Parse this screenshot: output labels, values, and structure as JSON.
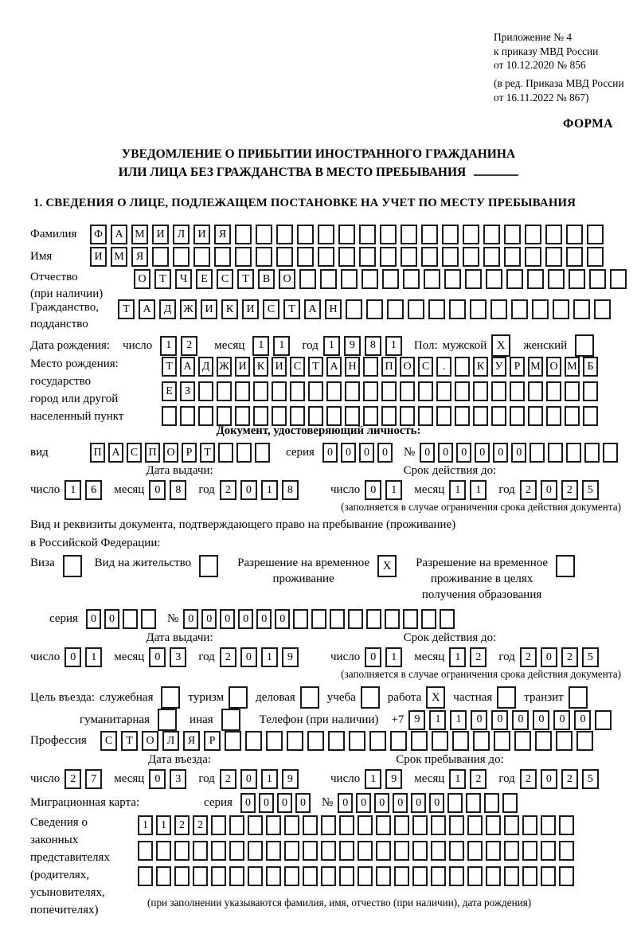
{
  "meta": {
    "appendix_lines": [
      "Приложение № 4",
      "к приказу МВД России",
      "от 10.12.2020 № 856"
    ],
    "amendment_lines": [
      "(в ред. Приказа МВД России",
      "от 16.11.2022 № 867)"
    ],
    "form_label": "ФОРМА"
  },
  "title": {
    "line1": "УВЕДОМЛЕНИЕ О ПРИБЫТИИ ИНОСТРАННОГО ГРАЖДАНИНА",
    "line2": "ИЛИ ЛИЦА БЕЗ ГРАЖДАНСТВА В МЕСТО ПРЕБЫВАНИЯ"
  },
  "section1_heading": "1. СВЕДЕНИЯ О ЛИЦЕ, ПОДЛЕЖАЩЕМ ПОСТАНОВКЕ НА УЧЕТ ПО МЕСТУ ПРЕБЫВАНИЯ",
  "labels": {
    "surname": "Фамилия",
    "name": "Имя",
    "patronymic_l1": "Отчество",
    "patronymic_l2": "(при наличии)",
    "citizenship_l1": "Гражданство,",
    "citizenship_l2": "подданство",
    "birth_date": "Дата рождения:",
    "day": "число",
    "month": "месяц",
    "year": "год",
    "gender": "Пол:",
    "birthplace_l1": "Место рождения:",
    "birthplace_l2": "государство",
    "birthplace_l3": "город или другой",
    "birthplace_l4": "населенный пункт",
    "id_doc_heading": "Документ, удостоверяющий личность:",
    "doc_kind": "вид",
    "series": "серия",
    "number": "№",
    "issue_date": "Дата выдачи:",
    "valid_until": "Срок действия до:",
    "validity_note": "(заполняется в случае ограничения срока действия документа)",
    "residence_doc_l1": "Вид и реквизиты документа, подтверждающего право на пребывание (проживание)",
    "residence_doc_l2": "в Российской Федерации:",
    "entry_purpose": "Цель въезда:",
    "phone": "Телефон (при наличии)",
    "phone_prefix": "+7",
    "profession": "Профессия",
    "entry_date": "Дата въезда:",
    "stay_until": "Срок пребывания до:",
    "migration_card": "Миграционная карта:",
    "representatives_l1": "Сведения о",
    "representatives_l2": "законных",
    "representatives_l3": "представителях",
    "representatives_l4": "(родителях,",
    "representatives_l5": "усыновителях,",
    "representatives_l6": "попечителях)",
    "representatives_note": "(при заполнении указываются фамилия, имя, отчество (при наличии), дата рождения)"
  },
  "fields": {
    "surname": {
      "value": "ФАМИЛИЯ",
      "count": 25
    },
    "name": {
      "value": "ИМЯ",
      "count": 25
    },
    "patronymic": {
      "value": "ОТЧЕСТВО",
      "count": 24
    },
    "citizenship": {
      "value": "ТАДЖИКИСТАН",
      "count": 24
    },
    "birth_day": {
      "value": "12",
      "count": 2
    },
    "birth_month": {
      "value": "11",
      "count": 2
    },
    "birth_year": {
      "value": "1981",
      "count": 4
    },
    "birthplace_1": {
      "value": "ТАДЖИКИСТАН ПОС. КУРМОМБ",
      "count": 24
    },
    "birthplace_2": {
      "value": "ЕЗ",
      "count": 24
    },
    "birthplace_3": {
      "value": "",
      "count": 24
    },
    "id_doc_kind": {
      "value": "ПАСПОРТ",
      "count": 10
    },
    "id_doc_series": {
      "value": "0000",
      "count": 4
    },
    "id_doc_number": {
      "value": "000000",
      "count": 11
    },
    "id_issue_day": {
      "value": "16",
      "count": 2
    },
    "id_issue_month": {
      "value": "08",
      "count": 2
    },
    "id_issue_year": {
      "value": "2018",
      "count": 4
    },
    "id_valid_day": {
      "value": "01",
      "count": 2
    },
    "id_valid_month": {
      "value": "11",
      "count": 2
    },
    "id_valid_year": {
      "value": "2025",
      "count": 4
    },
    "permit_series": {
      "value": "00",
      "count": 4
    },
    "permit_number": {
      "value": "000000",
      "count": 15
    },
    "permit_issue_day": {
      "value": "01",
      "count": 2
    },
    "permit_issue_month": {
      "value": "03",
      "count": 2
    },
    "permit_issue_year": {
      "value": "2019",
      "count": 4
    },
    "permit_valid_day": {
      "value": "01",
      "count": 2
    },
    "permit_valid_month": {
      "value": "12",
      "count": 2
    },
    "permit_valid_year": {
      "value": "2025",
      "count": 4
    },
    "phone_number": {
      "value": "911000000",
      "count": 10
    },
    "profession": {
      "value": "СТОЛЯР",
      "count": 24
    },
    "entry_day": {
      "value": "27",
      "count": 2
    },
    "entry_month": {
      "value": "03",
      "count": 2
    },
    "entry_year": {
      "value": "2019",
      "count": 4
    },
    "stay_day": {
      "value": "19",
      "count": 2
    },
    "stay_month": {
      "value": "12",
      "count": 2
    },
    "stay_year": {
      "value": "2025",
      "count": 4
    },
    "migration_series": {
      "value": "0000",
      "count": 4
    },
    "migration_number": {
      "value": "000000",
      "count": 10
    },
    "representatives_1": {
      "value": "1122",
      "count": 24
    },
    "representatives_2": {
      "value": "",
      "count": 24
    },
    "representatives_3": {
      "value": "",
      "count": 24
    }
  },
  "gender": {
    "male": {
      "label": "мужской",
      "mark": "X"
    },
    "female": {
      "label": "женский",
      "mark": ""
    }
  },
  "residence_options": [
    {
      "lines": [
        "Виза"
      ],
      "mark": ""
    },
    {
      "lines": [
        "Вид на жительство"
      ],
      "mark": ""
    },
    {
      "lines": [
        "Разрешение на временное",
        "проживание"
      ],
      "mark": "X"
    },
    {
      "lines": [
        "Разрешение на временное",
        "проживание в целях",
        "получения образования"
      ],
      "mark": ""
    }
  ],
  "purpose_options": [
    {
      "label": "служебная",
      "mark": ""
    },
    {
      "label": "туризм",
      "mark": ""
    },
    {
      "label": "деловая",
      "mark": ""
    },
    {
      "label": "учеба",
      "mark": ""
    },
    {
      "label": "работа",
      "mark": "X"
    },
    {
      "label": "частная",
      "mark": ""
    },
    {
      "label": "транзит",
      "mark": ""
    },
    {
      "label": "гуманитарная",
      "mark": ""
    },
    {
      "label": "иная",
      "mark": ""
    }
  ]
}
